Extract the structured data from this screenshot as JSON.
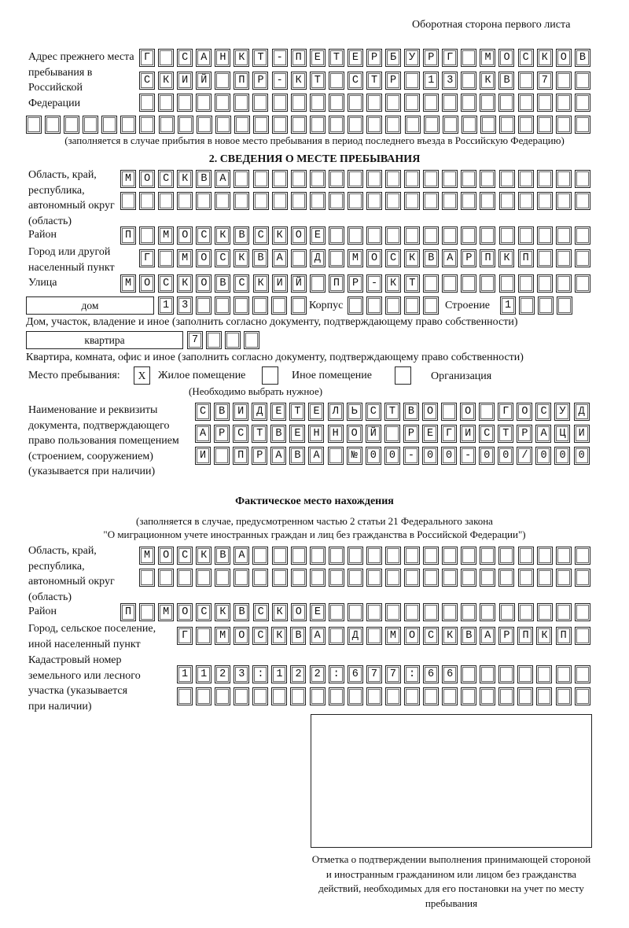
{
  "page_header": "Оборотная сторона первого листа",
  "previous_address": {
    "label": "Адрес прежнего места пребывания в Российской Федерации",
    "rows": [
      "Г САНКТ-ПЕТЕРБУРГ МОСКОВ",
      "СКИЙ ПР-КТ СТР 13 КВ 7  ",
      "                        ",
      "                              "
    ],
    "note": "(заполняется в случае прибытия в новое место пребывания в период последнего въезда в Российскую Федерацию)"
  },
  "section2": {
    "title": "2. СВЕДЕНИЯ О МЕСТЕ ПРЕБЫВАНИЯ",
    "region_label": "Область, край, республика, автономный округ (область)",
    "region_rows": [
      "МОСКВА                   ",
      "                         "
    ],
    "district_label": "Район",
    "district_row": "П МОСКВСКОЕ              ",
    "city_label": "Город или другой населенный пункт",
    "city_row": "Г МОСКВА Д МОСКВАРПКП   ",
    "street_label": "Улица",
    "street_row": "МОСКОВСКИЙ ПР-КТ         ",
    "house_type": "дом",
    "house_cells": "13      ",
    "korpus_label": "Корпус",
    "korpus_cells": "     ",
    "stroenie_label": "Строение",
    "stroenie_cells": "1   ",
    "house_note": "Дом, участок, владение и иное (заполнить согласно документу, подтверждающему право собственности)",
    "flat_type": "квартира",
    "flat_cells": "7   ",
    "flat_note": "Квартира, комната, офис и иное (заполнить согласно документу, подтверждающему право собственности)",
    "stay_place_label": "Место пребывания:",
    "stay_options": [
      {
        "label": "Жилое помещение",
        "mark": "X",
        "checked": true
      },
      {
        "label": "Иное помещение",
        "mark": "",
        "checked": false
      },
      {
        "label": "Организация",
        "mark": "",
        "checked": false
      }
    ],
    "stay_note": "(Необходимо выбрать нужное)",
    "document_label": "Наименование и реквизиты документа, подтверждающего право пользования помещением (строением, сооружением) (указывается при наличии)",
    "document_rows": [
      "СВИДЕТЕЛЬСТВО О ГОСУД",
      "АРСТВЕННОЙ РЕГИСТРАЦИ",
      "И ПРАВА №00-00-00/000"
    ]
  },
  "actual": {
    "title": "Фактическое место нахождения",
    "subtitle1": "(заполняется в случае, предусмотренном частью 2 статьи 21 Федерального закона",
    "subtitle2": "\"О миграционном учете иностранных граждан и лиц без гражданства в Российской Федерации\")",
    "region_label": "Область, край, республика, автономный округ (область)",
    "region_rows": [
      "МОСКВА                  ",
      "                        "
    ],
    "district_label": "Район",
    "district_row": "П МОСКВСКОЕ              ",
    "city_label": "Город, сельское поселение, иной населенный пункт",
    "city_row": "Г МОСКВА Д МОСКВАРПКП ",
    "cadastral_label": "Кадастровый номер земельного или лесного участка (указывается при наличии)",
    "cadastral_rows": [
      "1123:122:677:66       ",
      "                      "
    ]
  },
  "stamp_caption": "Отметка о подтверждении выполнения принимающей стороной и иностранным гражданином или лицом без гражданства действий, необходимых для его постановки на учет по месту пребывания"
}
